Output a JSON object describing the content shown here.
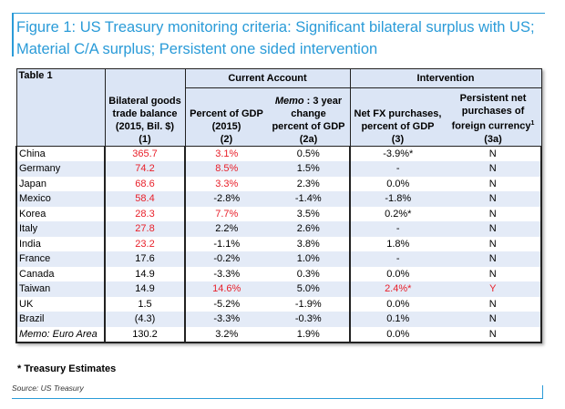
{
  "title": "Figure 1: US Treasury monitoring criteria: Significant bilateral surplus with US; Material C/A surplus; Persistent one sided intervention",
  "colors": {
    "accent": "#2a9bd8",
    "highlight": "#e8202a",
    "header_bg": "#dbe5f5"
  },
  "table": {
    "label": "Table 1",
    "group_current": "Current Account",
    "group_intervention": "Intervention",
    "headers": [
      "Bilateral goods trade balance (2015, Bil. $) (1)",
      "Percent of GDP (2015) (2)",
      "change percent of GDP (2a)",
      "Net FX purchases, percent of GDP (3)",
      "Persistent net purchases of foreign currency"
    ],
    "h1": [
      "Bilateral goods",
      "trade balance",
      "(2015, Bil. $)",
      "(1)"
    ],
    "h2": [
      "Percent of GDP",
      "(2015)",
      "(2)"
    ],
    "h3": [
      "Memo",
      "  : 3 year",
      "change",
      "percent of GDP",
      "(2a)"
    ],
    "h4": [
      "Net FX purchases,",
      "percent of GDP",
      "(3)"
    ],
    "h5": [
      "Persistent net",
      "purchases of",
      "foreign currency",
      "1",
      "(3a)"
    ],
    "rows": [
      [
        "China",
        "365.7",
        "3.1%",
        "0.5%",
        "-3.9%*",
        "N"
      ],
      [
        "Germany",
        "74.2",
        "8.5%",
        "1.5%",
        "-",
        "N"
      ],
      [
        "Japan",
        "68.6",
        "3.3%",
        "2.3%",
        "0.0%",
        "N"
      ],
      [
        "Mexico",
        "58.4",
        "-2.8%",
        "-1.4%",
        "-1.8%",
        "N"
      ],
      [
        "Korea",
        "28.3",
        "7.7%",
        "3.5%",
        "0.2%*",
        "N"
      ],
      [
        "Italy",
        "27.8",
        "2.2%",
        "2.6%",
        "-",
        "N"
      ],
      [
        "India",
        "23.2",
        "-1.1%",
        "3.8%",
        "1.8%",
        "N"
      ],
      [
        "France",
        "17.6",
        "-0.2%",
        "1.0%",
        "-",
        "N"
      ],
      [
        "Canada",
        "14.9",
        "-3.3%",
        "0.3%",
        "0.0%",
        "N"
      ],
      [
        "Taiwan",
        "14.9",
        "14.6%",
        "5.0%",
        "2.4%*",
        "Y"
      ],
      [
        "UK",
        "1.5",
        "-5.2%",
        "-1.9%",
        "0.0%",
        "N"
      ],
      [
        "Brazil",
        "(4.3)",
        "-3.3%",
        "-0.3%",
        "0.1%",
        "N"
      ],
      [
        "Memo: Euro Area",
        "130.2",
        "3.2%",
        "1.9%",
        "0.0%",
        "N"
      ]
    ],
    "red": [
      [
        1,
        2
      ],
      [
        1,
        2
      ],
      [
        1,
        2
      ],
      [
        1
      ],
      [
        1,
        2
      ],
      [
        1
      ],
      [
        1
      ],
      [],
      [],
      [
        2,
        4,
        5
      ],
      [],
      [],
      []
    ]
  },
  "footnote": "* Treasury Estimates",
  "source": "Source: US Treasury"
}
